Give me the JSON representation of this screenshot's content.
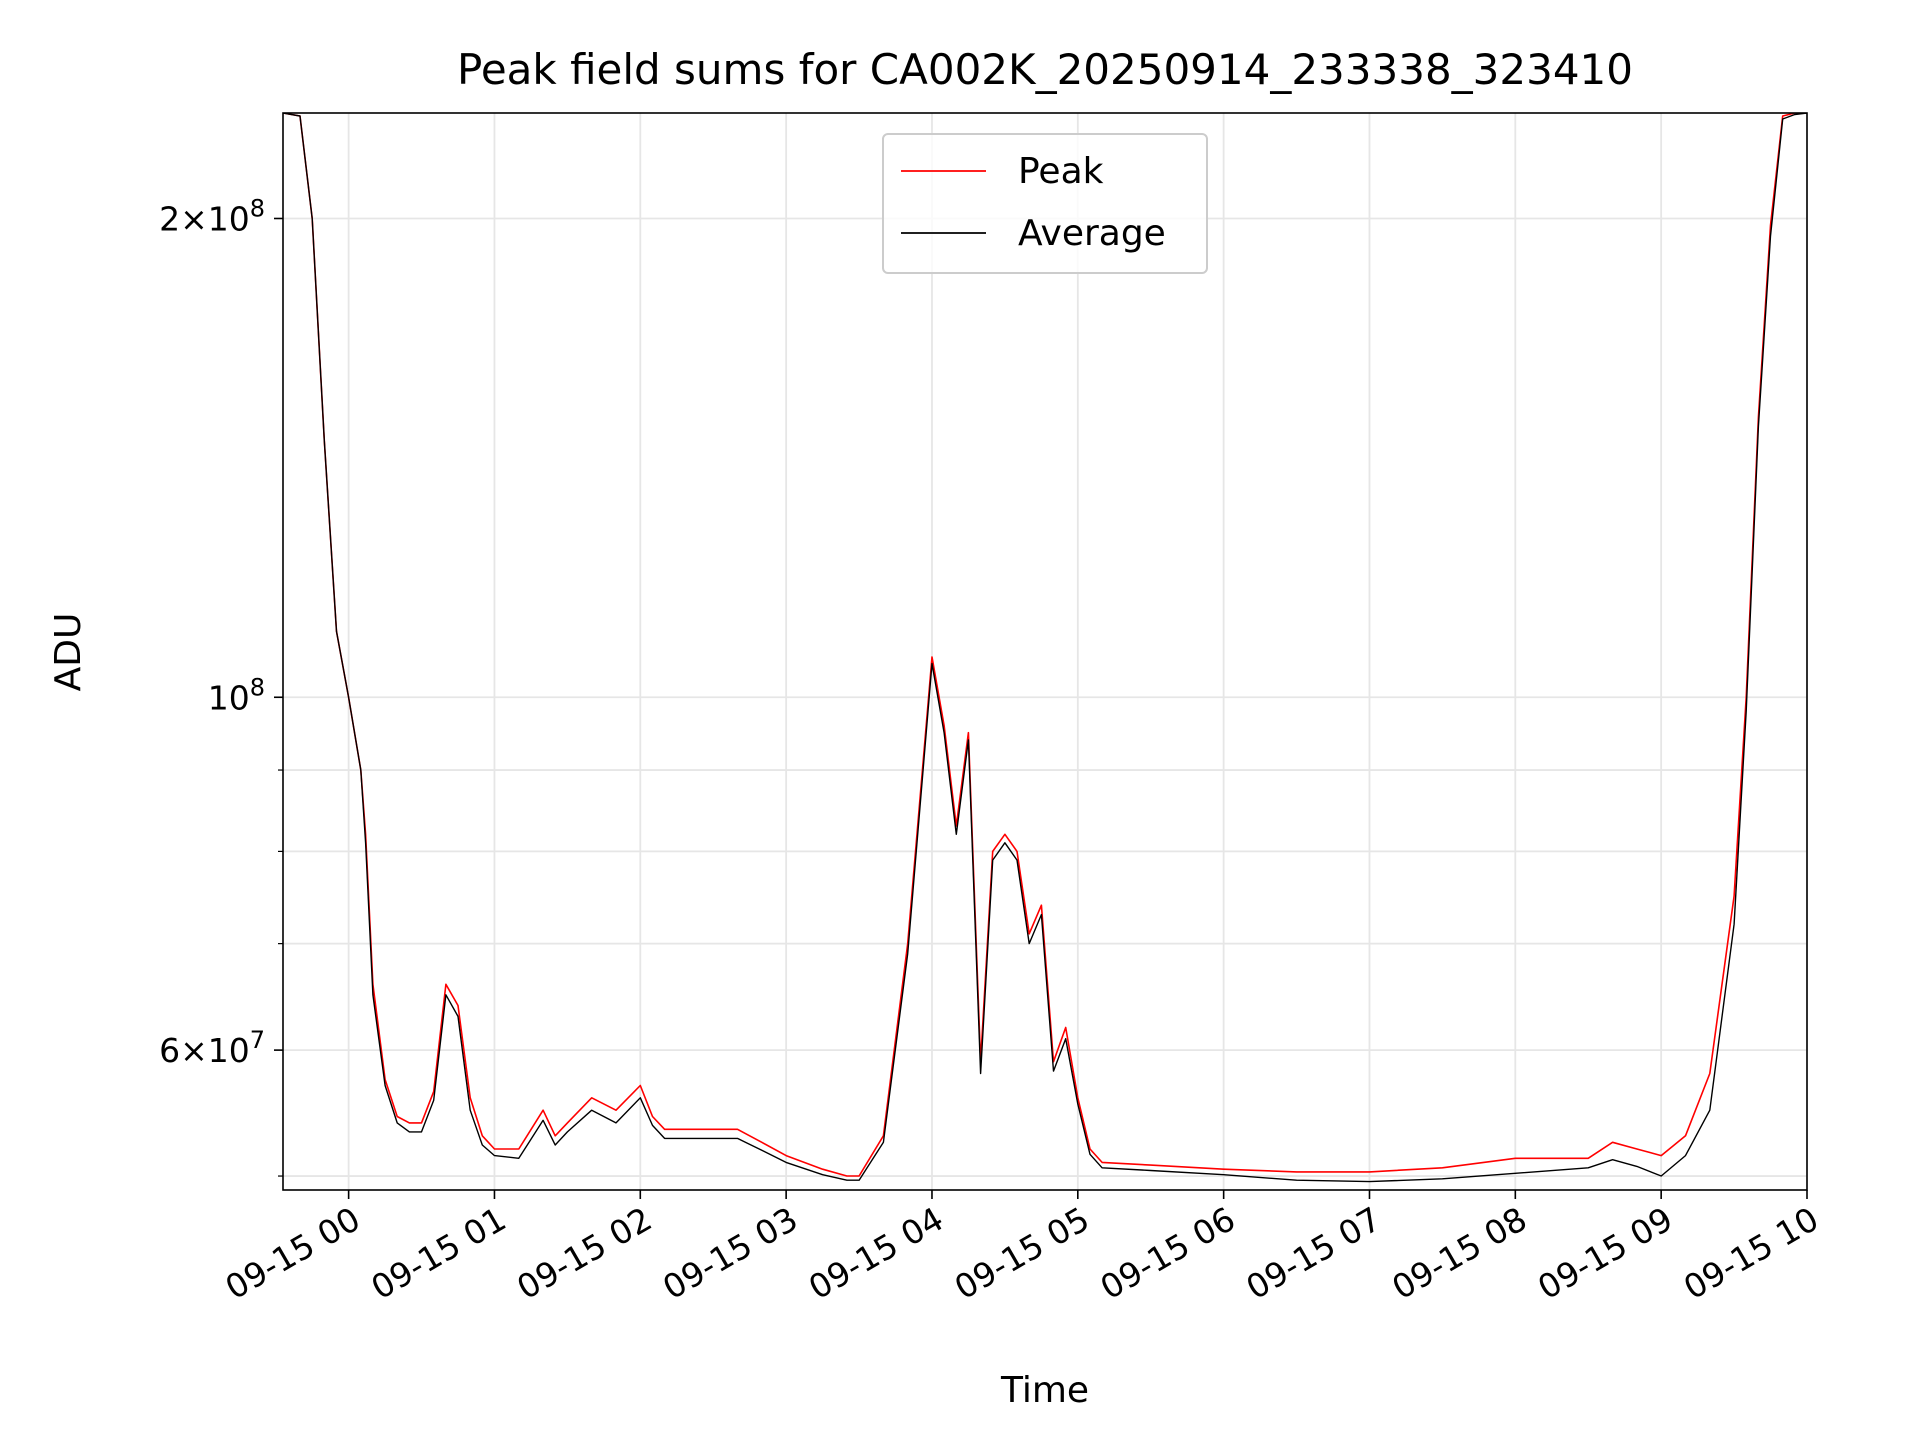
{
  "chart_data": {
    "type": "line",
    "title": "Peak field sums for CA002K_20250914_233338_323410",
    "xlabel": "Time",
    "ylabel": "ADU",
    "yscale": "log",
    "xlim": [
      "2025-09-14 23:33",
      "2025-09-15 10:00"
    ],
    "ylim": [
      49000000,
      233000000
    ],
    "x_ticks": [
      "09-15 00",
      "09-15 01",
      "09-15 02",
      "09-15 03",
      "09-15 04",
      "09-15 05",
      "09-15 06",
      "09-15 07",
      "09-15 08",
      "09-15 09",
      "09-15 10"
    ],
    "y_major_ticks": [
      {
        "value": 200000000,
        "mantissa": "2",
        "exponent": "8"
      },
      {
        "value": 100000000,
        "mantissa": "",
        "exponent": "8"
      },
      {
        "value": 60000000,
        "mantissa": "6",
        "exponent": "7"
      }
    ],
    "y_minor_ticks": [
      50000000,
      70000000,
      80000000,
      90000000
    ],
    "grid": true,
    "legend_position": "top-center",
    "series": [
      {
        "name": "Peak",
        "color": "#ff0000",
        "x": [
          "23:33",
          "23:40",
          "23:45",
          "23:50",
          "23:55",
          "00:00",
          "00:05",
          "00:07",
          "00:10",
          "00:15",
          "00:20",
          "00:25",
          "00:30",
          "00:35",
          "00:40",
          "00:45",
          "00:50",
          "00:55",
          "01:00",
          "01:10",
          "01:20",
          "01:25",
          "01:30",
          "01:40",
          "01:50",
          "02:00",
          "02:05",
          "02:10",
          "02:20",
          "02:40",
          "02:50",
          "03:00",
          "03:15",
          "03:25",
          "03:30",
          "03:40",
          "03:50",
          "04:00",
          "04:05",
          "04:10",
          "04:15",
          "04:20",
          "04:25",
          "04:30",
          "04:35",
          "04:40",
          "04:45",
          "04:50",
          "04:55",
          "05:00",
          "05:05",
          "05:10",
          "05:30",
          "06:00",
          "06:30",
          "07:00",
          "07:30",
          "08:00",
          "08:30",
          "08:40",
          "08:50",
          "09:00",
          "09:10",
          "09:20",
          "09:30",
          "09:35",
          "09:40",
          "09:45",
          "09:50",
          "09:55",
          "10:00"
        ],
        "y": [
          233000000,
          232000000,
          200000000,
          145000000,
          110000000,
          100000000,
          90000000,
          82000000,
          66000000,
          57500000,
          54500000,
          54000000,
          54000000,
          56500000,
          66000000,
          64000000,
          56000000,
          53000000,
          52000000,
          52000000,
          55000000,
          53000000,
          54000000,
          56000000,
          55000000,
          57000000,
          54500000,
          53500000,
          53500000,
          53500000,
          52500000,
          51500000,
          50500000,
          50000000,
          50000000,
          53000000,
          70000000,
          106000000,
          96000000,
          83000000,
          95000000,
          59000000,
          80000000,
          82000000,
          80000000,
          71000000,
          74000000,
          59000000,
          62000000,
          56000000,
          52000000,
          51000000,
          50800000,
          50500000,
          50300000,
          50300000,
          50600000,
          51300000,
          51300000,
          52500000,
          52000000,
          51500000,
          53000000,
          58000000,
          75000000,
          100000000,
          150000000,
          198000000,
          232000000,
          233000000,
          233000000
        ]
      },
      {
        "name": "Average",
        "color": "#000000",
        "x": [
          "23:33",
          "23:40",
          "23:45",
          "23:50",
          "23:55",
          "00:00",
          "00:05",
          "00:07",
          "00:10",
          "00:15",
          "00:20",
          "00:25",
          "00:30",
          "00:35",
          "00:40",
          "00:45",
          "00:50",
          "00:55",
          "01:00",
          "01:10",
          "01:20",
          "01:25",
          "01:30",
          "01:40",
          "01:50",
          "02:00",
          "02:05",
          "02:10",
          "02:20",
          "02:40",
          "02:50",
          "03:00",
          "03:15",
          "03:25",
          "03:30",
          "03:40",
          "03:50",
          "04:00",
          "04:05",
          "04:10",
          "04:15",
          "04:20",
          "04:25",
          "04:30",
          "04:35",
          "04:40",
          "04:45",
          "04:50",
          "04:55",
          "05:00",
          "05:05",
          "05:10",
          "05:30",
          "06:00",
          "06:30",
          "07:00",
          "07:30",
          "08:00",
          "08:30",
          "08:40",
          "08:50",
          "09:00",
          "09:10",
          "09:20",
          "09:30",
          "09:35",
          "09:40",
          "09:45",
          "09:50",
          "09:55",
          "10:00"
        ],
        "y": [
          233000000,
          232000000,
          200000000,
          145000000,
          110000000,
          100000000,
          90000000,
          81000000,
          65000000,
          57000000,
          54000000,
          53300000,
          53300000,
          55800000,
          65000000,
          63000000,
          55000000,
          52300000,
          51500000,
          51300000,
          54200000,
          52300000,
          53300000,
          55000000,
          54000000,
          56000000,
          53800000,
          52800000,
          52800000,
          52800000,
          51900000,
          51000000,
          50100000,
          49700000,
          49700000,
          52500000,
          69000000,
          105000000,
          95000000,
          82000000,
          94000000,
          58000000,
          79000000,
          81000000,
          79000000,
          70000000,
          73000000,
          58200000,
          61000000,
          55500000,
          51600000,
          50600000,
          50400000,
          50100000,
          49700000,
          49600000,
          49800000,
          50200000,
          50600000,
          51200000,
          50700000,
          50000000,
          51500000,
          55000000,
          72000000,
          98000000,
          148000000,
          195000000,
          231000000,
          232500000,
          233000000
        ]
      }
    ]
  }
}
